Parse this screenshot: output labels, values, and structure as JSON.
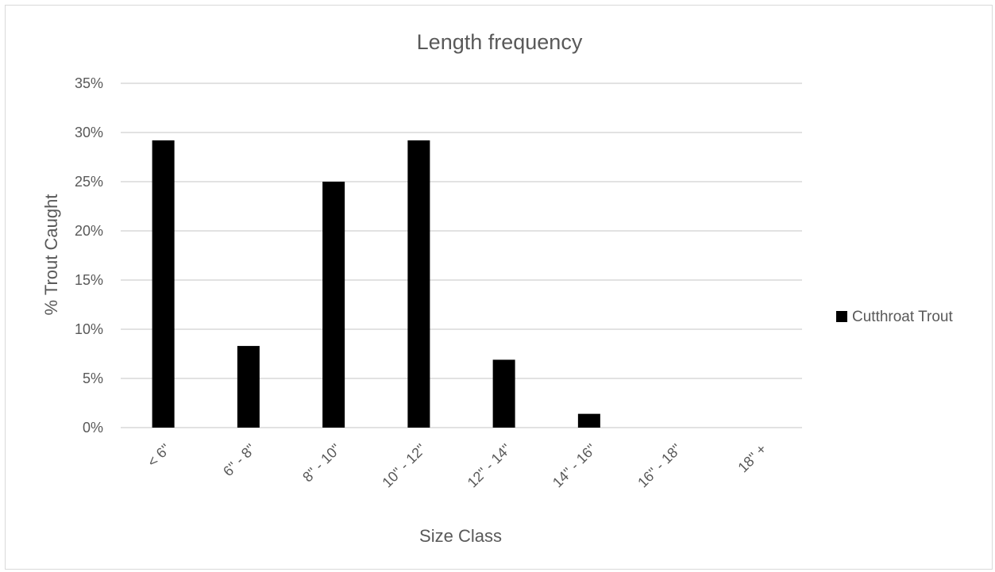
{
  "chart_data": {
    "type": "bar",
    "title": "Length frequency",
    "xlabel": "Size Class",
    "ylabel": "% Trout Caught",
    "categories": [
      "< 6\"",
      "6\" - 8\"",
      "8\" - 10\"",
      "10\" - 12\"",
      "12\" - 14\"",
      "14\" - 16\"",
      "16\" - 18\"",
      "18\" +"
    ],
    "series": [
      {
        "name": "Cutthroat Trout",
        "values": [
          0.292,
          0.083,
          0.25,
          0.292,
          0.069,
          0.014,
          0,
          0
        ]
      }
    ],
    "ylim": [
      0,
      0.35
    ],
    "yticks": [
      0,
      0.05,
      0.1,
      0.15,
      0.2,
      0.25,
      0.3,
      0.35
    ],
    "ytick_labels": [
      "0%",
      "5%",
      "10%",
      "15%",
      "20%",
      "25%",
      "30%",
      "35%"
    ],
    "grid": true,
    "legend_position": "right",
    "colors": {
      "bar": "#000000",
      "grid": "#d9d9d9",
      "text": "#595959",
      "border": "#d9d9d9"
    }
  }
}
